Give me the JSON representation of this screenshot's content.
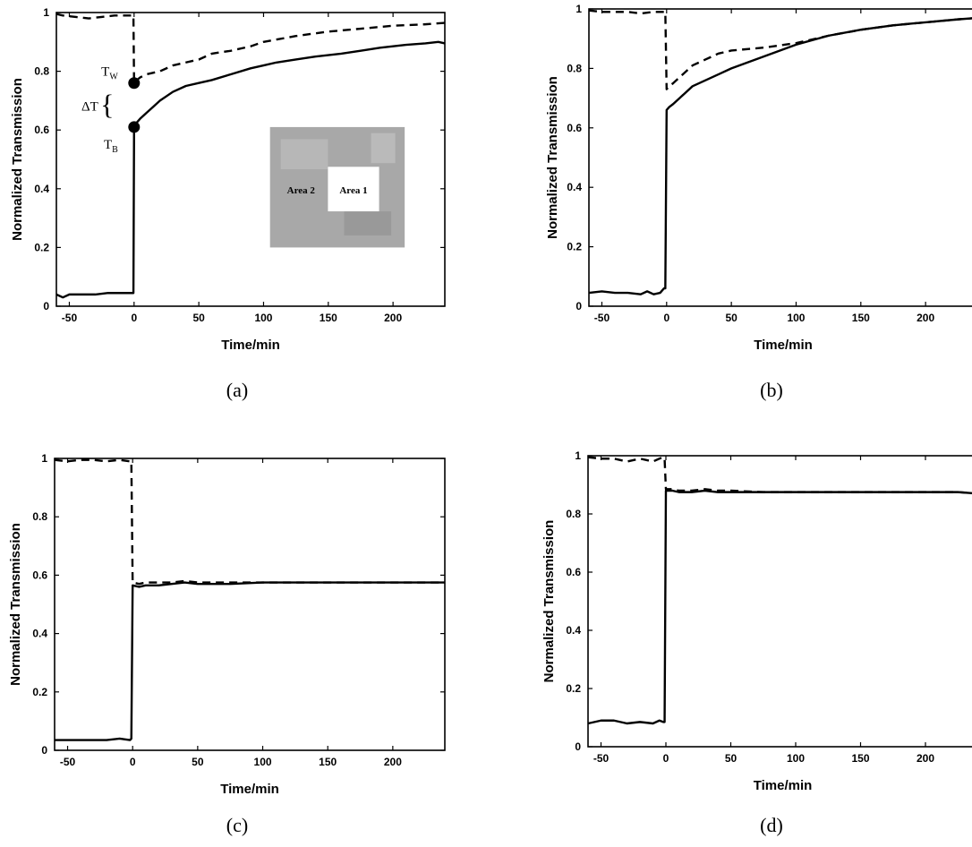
{
  "chart_data": [
    {
      "type": "line",
      "panel": "a",
      "caption": "(a)",
      "xlabel": "Time/min",
      "ylabel": "Normalized Transmission",
      "xlim": [
        -60,
        240
      ],
      "ylim": [
        0,
        1
      ],
      "xticks": [
        -50,
        0,
        50,
        100,
        150,
        200
      ],
      "yticks": [
        0,
        0.2,
        0.4,
        0.6,
        0.8,
        1
      ],
      "grid": false,
      "series": [
        {
          "style": "solid",
          "x": [
            -60,
            -55,
            -50,
            -40,
            -30,
            -20,
            -10,
            -1,
            -0.5,
            0,
            1,
            5,
            10,
            15,
            20,
            30,
            40,
            50,
            60,
            75,
            90,
            100,
            110,
            125,
            140,
            150,
            160,
            175,
            190,
            200,
            210,
            225,
            235,
            240
          ],
          "y": [
            0.04,
            0.03,
            0.04,
            0.04,
            0.04,
            0.045,
            0.045,
            0.045,
            0.045,
            0.61,
            0.62,
            0.64,
            0.66,
            0.68,
            0.7,
            0.73,
            0.75,
            0.76,
            0.77,
            0.79,
            0.81,
            0.82,
            0.83,
            0.84,
            0.85,
            0.855,
            0.86,
            0.87,
            0.88,
            0.885,
            0.89,
            0.895,
            0.9,
            0.895
          ]
        },
        {
          "style": "dashed",
          "x": [
            -60,
            -55,
            -45,
            -35,
            -25,
            -15,
            -5,
            -1,
            -0.5,
            0,
            2,
            5,
            10,
            20,
            30,
            40,
            50,
            60,
            75,
            90,
            100,
            125,
            150,
            175,
            200,
            225,
            240
          ],
          "y": [
            0.995,
            0.99,
            0.985,
            0.98,
            0.985,
            0.99,
            0.99,
            0.99,
            0.99,
            0.76,
            0.77,
            0.78,
            0.79,
            0.8,
            0.82,
            0.83,
            0.84,
            0.86,
            0.87,
            0.885,
            0.9,
            0.92,
            0.935,
            0.945,
            0.955,
            0.96,
            0.965
          ]
        }
      ],
      "annotations": {
        "t_w_main": "T",
        "t_w_sub": "W",
        "t_b_main": "T",
        "t_b_sub": "B",
        "delta_t": "ΔT",
        "brace": "{",
        "t_w_value": 0.76,
        "t_b_value": 0.61
      },
      "inset": {
        "area_2_label": "Area 2",
        "area_1_label": "Area 1"
      }
    },
    {
      "type": "line",
      "panel": "b",
      "caption": "(b)",
      "xlabel": "Time/min",
      "ylabel": "Normalized Transmission",
      "xlim": [
        -60,
        240
      ],
      "ylim": [
        0,
        1
      ],
      "xticks": [
        -50,
        0,
        50,
        100,
        150,
        200
      ],
      "yticks": [
        0,
        0.2,
        0.4,
        0.6,
        0.8,
        1
      ],
      "grid": false,
      "series": [
        {
          "style": "solid",
          "x": [
            -60,
            -50,
            -40,
            -30,
            -20,
            -15,
            -10,
            -5,
            -2,
            -1,
            0,
            2,
            5,
            10,
            15,
            20,
            30,
            40,
            50,
            75,
            100,
            125,
            150,
            175,
            200,
            225,
            240
          ],
          "y": [
            0.045,
            0.05,
            0.045,
            0.045,
            0.04,
            0.05,
            0.04,
            0.045,
            0.06,
            0.06,
            0.66,
            0.67,
            0.68,
            0.7,
            0.72,
            0.74,
            0.76,
            0.78,
            0.8,
            0.84,
            0.88,
            0.91,
            0.93,
            0.945,
            0.955,
            0.965,
            0.97
          ]
        },
        {
          "style": "dashed",
          "x": [
            -60,
            -50,
            -40,
            -30,
            -20,
            -10,
            -5,
            -2,
            -1,
            0,
            2,
            5,
            10,
            15,
            20,
            30,
            40,
            50,
            75,
            100,
            125,
            150,
            175,
            200,
            225,
            240
          ],
          "y": [
            0.995,
            0.99,
            0.99,
            0.99,
            0.985,
            0.99,
            0.99,
            0.99,
            0.99,
            0.73,
            0.74,
            0.75,
            0.77,
            0.79,
            0.81,
            0.83,
            0.85,
            0.86,
            0.87,
            0.885,
            0.91,
            0.93,
            0.945,
            0.955,
            0.965,
            0.97
          ]
        }
      ]
    },
    {
      "type": "line",
      "panel": "c",
      "caption": "(c)",
      "xlabel": "Time/min",
      "ylabel": "Normalized Transmission",
      "xlim": [
        -60,
        240
      ],
      "ylim": [
        0,
        1
      ],
      "xticks": [
        -50,
        0,
        50,
        100,
        150,
        200
      ],
      "yticks": [
        0,
        0.2,
        0.4,
        0.6,
        0.8,
        1
      ],
      "grid": false,
      "series": [
        {
          "style": "solid",
          "x": [
            -60,
            -50,
            -40,
            -30,
            -20,
            -10,
            -2,
            -1,
            0,
            5,
            10,
            20,
            30,
            40,
            50,
            60,
            75,
            100,
            125,
            150,
            175,
            200,
            225,
            240
          ],
          "y": [
            0.035,
            0.035,
            0.035,
            0.035,
            0.035,
            0.04,
            0.035,
            0.04,
            0.565,
            0.56,
            0.565,
            0.565,
            0.57,
            0.575,
            0.57,
            0.57,
            0.57,
            0.575,
            0.575,
            0.575,
            0.575,
            0.575,
            0.575,
            0.575
          ]
        },
        {
          "style": "dashed",
          "x": [
            -60,
            -50,
            -40,
            -30,
            -20,
            -10,
            -2,
            -1,
            0,
            5,
            10,
            20,
            30,
            40,
            50,
            75,
            100,
            125,
            150,
            175,
            200,
            225,
            240
          ],
          "y": [
            0.995,
            0.99,
            0.995,
            0.995,
            0.99,
            0.995,
            0.99,
            0.99,
            0.575,
            0.57,
            0.575,
            0.575,
            0.575,
            0.58,
            0.575,
            0.575,
            0.575,
            0.575,
            0.575,
            0.575,
            0.575,
            0.575,
            0.575
          ]
        }
      ]
    },
    {
      "type": "line",
      "panel": "d",
      "caption": "(d)",
      "xlabel": "Time/min",
      "ylabel": "Normalized Transmission",
      "xlim": [
        -60,
        240
      ],
      "ylim": [
        0,
        1
      ],
      "xticks": [
        -50,
        0,
        50,
        100,
        150,
        200
      ],
      "yticks": [
        0,
        0.2,
        0.4,
        0.6,
        0.8,
        1
      ],
      "grid": false,
      "series": [
        {
          "style": "solid",
          "x": [
            -60,
            -50,
            -40,
            -30,
            -20,
            -10,
            -5,
            -2,
            -1,
            0,
            5,
            10,
            20,
            30,
            40,
            50,
            75,
            100,
            125,
            150,
            175,
            200,
            225,
            240
          ],
          "y": [
            0.08,
            0.09,
            0.09,
            0.08,
            0.085,
            0.08,
            0.09,
            0.085,
            0.085,
            0.88,
            0.88,
            0.875,
            0.875,
            0.88,
            0.875,
            0.875,
            0.875,
            0.875,
            0.875,
            0.875,
            0.875,
            0.875,
            0.875,
            0.87
          ]
        },
        {
          "style": "dashed",
          "x": [
            -60,
            -50,
            -40,
            -30,
            -20,
            -10,
            -5,
            -2,
            -1,
            0,
            5,
            10,
            20,
            30,
            40,
            50,
            75,
            100,
            125,
            150,
            175,
            200,
            225,
            240
          ],
          "y": [
            0.995,
            0.99,
            0.99,
            0.98,
            0.99,
            0.98,
            0.99,
            0.995,
            0.99,
            0.885,
            0.885,
            0.88,
            0.88,
            0.885,
            0.88,
            0.88,
            0.875,
            0.875,
            0.875,
            0.875,
            0.875,
            0.875,
            0.875,
            0.87
          ]
        }
      ]
    }
  ]
}
